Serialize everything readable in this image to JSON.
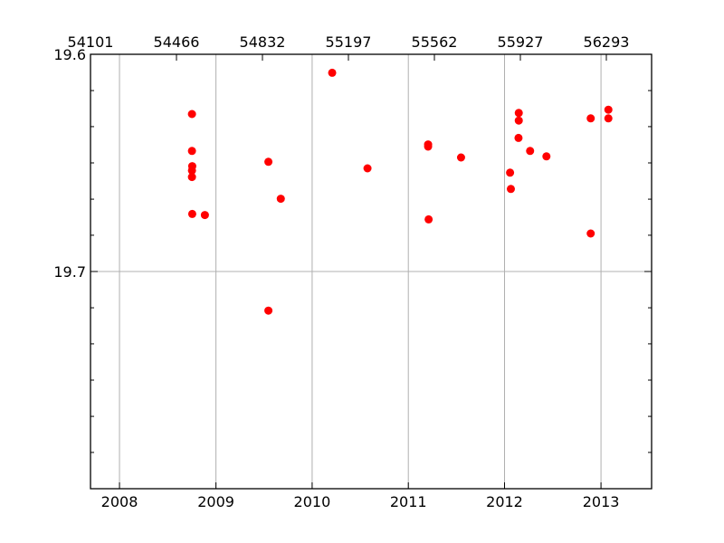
{
  "chart_data": {
    "type": "scatter",
    "title": "",
    "xlabel": "",
    "ylabel": "",
    "y_inverted": true,
    "grid": true,
    "legend": "none",
    "marker_color": "#ff0000",
    "xlim": [
      "2007-09-13",
      "2013-07-12"
    ],
    "ylim": [
      19.8,
      19.6
    ],
    "x_ticks": [
      "2008",
      "2009",
      "2010",
      "2011",
      "2012",
      "2013"
    ],
    "x_tick_values": [
      "2008-01-01",
      "2009-01-01",
      "2010-01-01",
      "2011-01-01",
      "2012-01-01",
      "2013-01-01"
    ],
    "top_x_ticks": [
      "54101",
      "54466",
      "54832",
      "55197",
      "55562",
      "55927",
      "56293"
    ],
    "y_ticks": [
      "19.6",
      "19.7"
    ],
    "y_tick_values": [
      19.6,
      19.7
    ],
    "minor_y_ticks": [
      19.6167,
      19.6333,
      19.65,
      19.6667,
      19.6833,
      19.7167,
      19.7333,
      19.75,
      19.7667,
      19.7833
    ],
    "series": [
      {
        "x": [
          "2008-10-02",
          "2008-10-02",
          "2008-10-02",
          "2008-10-03",
          "2008-10-02",
          "2008-10-03",
          "2008-11-20",
          "2009-07-19",
          "2009-09-04",
          "2009-07-19",
          "2010-03-18",
          "2010-07-30",
          "2011-03-17",
          "2011-03-17",
          "2011-03-19",
          "2011-07-20",
          "2012-01-22",
          "2012-01-25",
          "2012-02-24",
          "2012-02-24",
          "2012-02-23",
          "2012-04-07",
          "2012-06-08",
          "2012-11-23",
          "2012-11-23",
          "2013-01-29",
          "2013-01-29"
        ],
        "y": [
          19.6275,
          19.6445,
          19.6535,
          19.6515,
          19.6565,
          19.6735,
          19.674,
          19.6495,
          19.6665,
          19.718,
          19.6085,
          19.6525,
          19.6415,
          19.6425,
          19.676,
          19.6475,
          19.6545,
          19.662,
          19.627,
          19.6305,
          19.6385,
          19.6445,
          19.647,
          19.6295,
          19.6825,
          19.6255,
          19.6295
        ]
      }
    ]
  }
}
